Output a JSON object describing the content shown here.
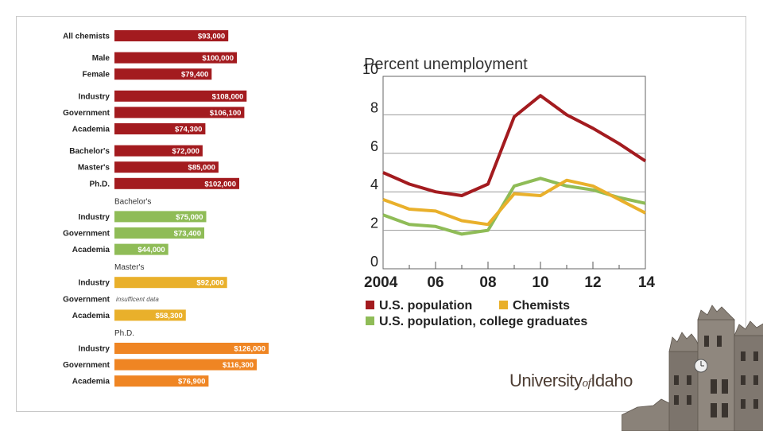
{
  "colors": {
    "red": "#a31b1f",
    "green": "#8fbc57",
    "yellow": "#e9b02b",
    "orange": "#ef8523"
  },
  "salary_chart": {
    "type": "bar",
    "max_value": 126000,
    "groups": [
      {
        "heading": "",
        "bars": [
          {
            "label": "All chemists",
            "value": 93000,
            "display": "$93,000",
            "color": "red"
          }
        ]
      },
      {
        "heading": "",
        "bars": [
          {
            "label": "Male",
            "value": 100000,
            "display": "$100,000",
            "color": "red"
          },
          {
            "label": "Female",
            "value": 79400,
            "display": "$79,400",
            "color": "red"
          }
        ]
      },
      {
        "heading": "",
        "bars": [
          {
            "label": "Industry",
            "value": 108000,
            "display": "$108,000",
            "color": "red"
          },
          {
            "label": "Government",
            "value": 106100,
            "display": "$106,100",
            "color": "red"
          },
          {
            "label": "Academia",
            "value": 74300,
            "display": "$74,300",
            "color": "red"
          }
        ]
      },
      {
        "heading": "",
        "bars": [
          {
            "label": "Bachelor's",
            "value": 72000,
            "display": "$72,000",
            "color": "red"
          },
          {
            "label": "Master's",
            "value": 85000,
            "display": "$85,000",
            "color": "red"
          },
          {
            "label": "Ph.D.",
            "value": 102000,
            "display": "$102,000",
            "color": "red"
          }
        ]
      },
      {
        "heading": "Bachelor's",
        "bars": [
          {
            "label": "Industry",
            "value": 75000,
            "display": "$75,000",
            "color": "green"
          },
          {
            "label": "Government",
            "value": 73400,
            "display": "$73,400",
            "color": "green"
          },
          {
            "label": "Academia",
            "value": 44000,
            "display": "$44,000",
            "color": "green"
          }
        ]
      },
      {
        "heading": "Master's",
        "bars": [
          {
            "label": "Industry",
            "value": 92000,
            "display": "$92,000",
            "color": "yellow"
          },
          {
            "label": "Government",
            "value": null,
            "display": "insufficent data",
            "color": "yellow"
          },
          {
            "label": "Academia",
            "value": 58300,
            "display": "$58,300",
            "color": "yellow"
          }
        ]
      },
      {
        "heading": "Ph.D.",
        "bars": [
          {
            "label": "Industry",
            "value": 126000,
            "display": "$126,000",
            "color": "orange"
          },
          {
            "label": "Government",
            "value": 116300,
            "display": "$116,300",
            "color": "orange"
          },
          {
            "label": "Academia",
            "value": 76900,
            "display": "$76,900",
            "color": "orange"
          }
        ]
      }
    ]
  },
  "chart_data": {
    "type": "line",
    "title": "Percent unemployment",
    "ylim": [
      0,
      10
    ],
    "yticks": [
      0,
      2,
      4,
      6,
      8,
      10
    ],
    "xlim": [
      2004,
      2014
    ],
    "xticks": [
      2004,
      2006,
      2008,
      2010,
      2012,
      2014
    ],
    "xtick_labels": [
      "2004",
      "06",
      "08",
      "10",
      "12",
      "14"
    ],
    "grid": true,
    "legend_position": "bottom",
    "series": [
      {
        "name": "U.S. population",
        "color": "red",
        "x": [
          2004,
          2005,
          2006,
          2007,
          2008,
          2009,
          2010,
          2011,
          2012,
          2013,
          2014
        ],
        "values": [
          5.0,
          4.4,
          4.0,
          3.8,
          4.4,
          7.9,
          9.0,
          8.0,
          7.3,
          6.5,
          5.6
        ]
      },
      {
        "name": "Chemists",
        "color": "yellow",
        "x": [
          2004,
          2005,
          2006,
          2007,
          2008,
          2009,
          2010,
          2011,
          2012,
          2013,
          2014
        ],
        "values": [
          3.6,
          3.1,
          3.0,
          2.5,
          2.3,
          3.9,
          3.8,
          4.6,
          4.3,
          3.6,
          2.9
        ]
      },
      {
        "name": "U.S. population, college graduates",
        "color": "green",
        "x": [
          2004,
          2005,
          2006,
          2007,
          2008,
          2009,
          2010,
          2011,
          2012,
          2013,
          2014
        ],
        "values": [
          2.8,
          2.3,
          2.2,
          1.8,
          2.0,
          4.3,
          4.7,
          4.3,
          4.1,
          3.7,
          3.4
        ]
      }
    ]
  },
  "logo": {
    "part1": "University",
    "part2": "of",
    "part3": "Idaho"
  }
}
